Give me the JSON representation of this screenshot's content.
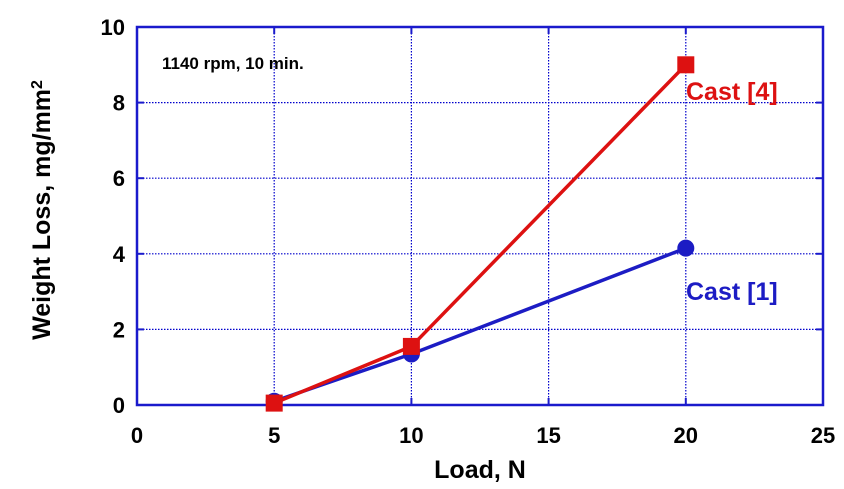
{
  "chart_data": {
    "type": "line",
    "title": "",
    "xlabel": "Load, N",
    "ylabel": "Weight Loss, mg/mm",
    "ylabel_superscript": "2",
    "xlim": [
      0,
      25
    ],
    "ylim": [
      0,
      10
    ],
    "xticks": [
      0,
      5,
      10,
      15,
      20,
      25
    ],
    "yticks": [
      0,
      2,
      4,
      6,
      8,
      10
    ],
    "grid": true,
    "grid_color": "#0000cc",
    "annotation": "1140 rpm, 10 min.",
    "series": [
      {
        "name": "Cast [1]",
        "color": "#1c1cc4",
        "marker": "circle",
        "x": [
          5,
          10,
          20
        ],
        "y": [
          0.1,
          1.35,
          4.15
        ]
      },
      {
        "name": "Cast [4]",
        "color": "#dd1111",
        "marker": "square",
        "x": [
          5,
          10,
          20
        ],
        "y": [
          0.05,
          1.55,
          9.0
        ]
      }
    ]
  }
}
